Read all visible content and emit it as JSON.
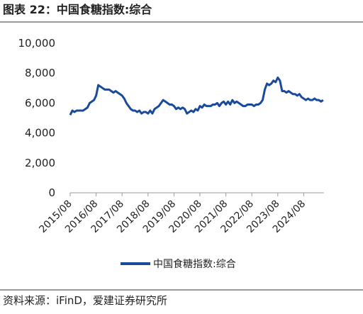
{
  "chart_data": {
    "type": "line",
    "title": "图表 22：中国食糖指数:综合",
    "source": "资料来源：iFinD，爱建证券研究所",
    "x": [
      "2015/08",
      "2015/09",
      "2015/10",
      "2015/11",
      "2015/12",
      "2016/01",
      "2016/02",
      "2016/03",
      "2016/04",
      "2016/05",
      "2016/06",
      "2016/07",
      "2016/08",
      "2016/09",
      "2016/10",
      "2016/11",
      "2016/12",
      "2017/01",
      "2017/02",
      "2017/03",
      "2017/04",
      "2017/05",
      "2017/06",
      "2017/07",
      "2017/08",
      "2017/09",
      "2017/10",
      "2017/11",
      "2017/12",
      "2018/01",
      "2018/02",
      "2018/03",
      "2018/04",
      "2018/05",
      "2018/06",
      "2018/07",
      "2018/08",
      "2018/09",
      "2018/10",
      "2018/11",
      "2018/12",
      "2019/01",
      "2019/02",
      "2019/03",
      "2019/04",
      "2019/05",
      "2019/06",
      "2019/07",
      "2019/08",
      "2019/09",
      "2019/10",
      "2019/11",
      "2019/12",
      "2020/01",
      "2020/02",
      "2020/03",
      "2020/04",
      "2020/05",
      "2020/06",
      "2020/07",
      "2020/08",
      "2020/09",
      "2020/10",
      "2020/11",
      "2020/12",
      "2021/01",
      "2021/02",
      "2021/03",
      "2021/04",
      "2021/05",
      "2021/06",
      "2021/07",
      "2021/08",
      "2021/09",
      "2021/10",
      "2021/11",
      "2021/12",
      "2022/01",
      "2022/02",
      "2022/03",
      "2022/04",
      "2022/05",
      "2022/06",
      "2022/07",
      "2022/08",
      "2022/09",
      "2022/10",
      "2022/11",
      "2022/12",
      "2023/01",
      "2023/02",
      "2023/03",
      "2023/04",
      "2023/05",
      "2023/06",
      "2023/07",
      "2023/08",
      "2023/09",
      "2023/10",
      "2023/11",
      "2023/12",
      "2024/01",
      "2024/02",
      "2024/03",
      "2024/04",
      "2024/05",
      "2024/06",
      "2024/07",
      "2024/08",
      "2024/09",
      "2024/10",
      "2024/11",
      "2024/12",
      "2025/01",
      "2025/02",
      "2025/03",
      "2025/04",
      "2025/05"
    ],
    "series": [
      {
        "name": "中国食糖指数:综合",
        "color": "#1a4a9c",
        "values": [
          5200,
          5500,
          5400,
          5500,
          5500,
          5500,
          5500,
          5600,
          5700,
          6000,
          6100,
          6200,
          6500,
          7200,
          7100,
          7000,
          6900,
          6900,
          6900,
          6800,
          6700,
          6800,
          6700,
          6600,
          6500,
          6300,
          6000,
          5800,
          5600,
          5500,
          5500,
          5400,
          5500,
          5300,
          5400,
          5400,
          5300,
          5500,
          5300,
          5600,
          5700,
          5800,
          6000,
          6200,
          6100,
          6000,
          5900,
          5900,
          5800,
          5600,
          5700,
          5600,
          5700,
          5600,
          5300,
          5400,
          5500,
          5400,
          5600,
          5500,
          5800,
          5700,
          5900,
          5800,
          5800,
          5800,
          5900,
          5900,
          6000,
          5800,
          6000,
          6100,
          5900,
          6100,
          5900,
          6200,
          6000,
          6100,
          6000,
          5900,
          5800,
          5800,
          5900,
          5900,
          5900,
          5800,
          5900,
          5900,
          6000,
          6200,
          6900,
          7300,
          7200,
          7300,
          7500,
          7400,
          7700,
          7500,
          6800,
          6800,
          6700,
          6800,
          6700,
          6600,
          6600,
          6500,
          6600,
          6400,
          6300,
          6200,
          6300,
          6200,
          6200,
          6300,
          6200,
          6200,
          6100,
          6200
        ]
      }
    ],
    "ylim": [
      0,
      10000
    ],
    "yticks": [
      0,
      {
        "value": 2000,
        "label": "2,000"
      },
      {
        "value": 4000,
        "label": "4,000"
      },
      {
        "value": 6000,
        "label": "6,000"
      },
      {
        "value": 8000,
        "label": "8,000"
      },
      {
        "value": 10000,
        "label": "10,000"
      }
    ],
    "xticks": [
      "2015/08",
      "2016/08",
      "2017/08",
      "2018/08",
      "2019/08",
      "2020/08",
      "2021/08",
      "2022/08",
      "2023/08",
      "2024/08"
    ],
    "legend": "bottom"
  }
}
